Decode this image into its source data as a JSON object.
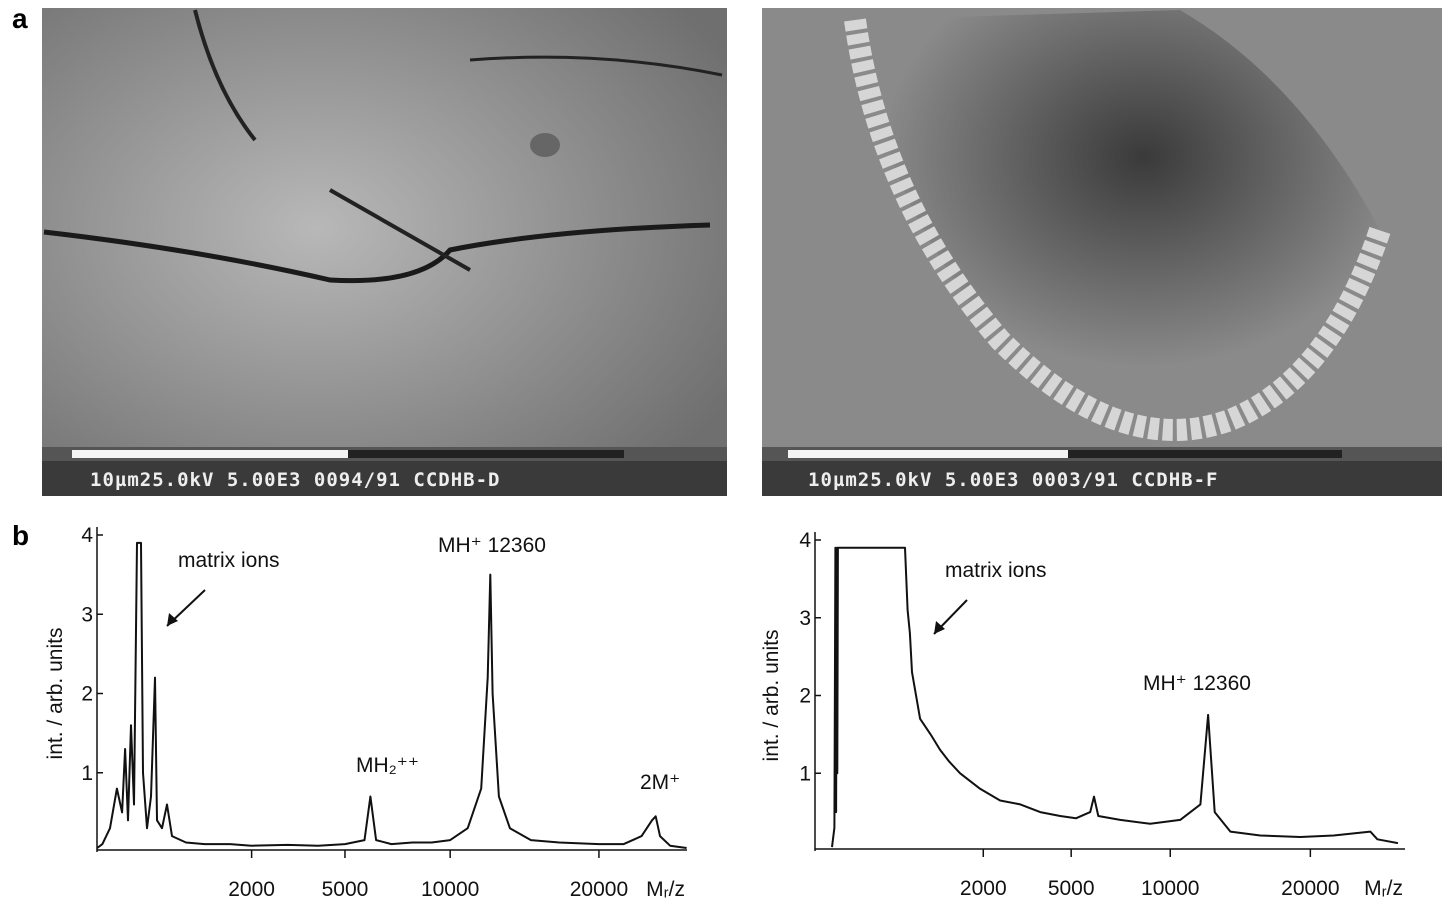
{
  "figure": {
    "panel_labels": [
      "a",
      "b"
    ],
    "images": [
      {
        "caption": "10µm25.0kV 5.00E3 0094/91 CCDHB-D"
      },
      {
        "caption": "10µm25.0kV 5.00E3 0003/91 CCDHB-F"
      }
    ]
  },
  "chart_data": [
    {
      "type": "line",
      "y_label": "int. / arb. units",
      "x_label": "Mᵣ/z",
      "xscale": "sqrt",
      "color": "#111111",
      "xlim": [
        0,
        28000
      ],
      "ylim": [
        0,
        4
      ],
      "xticks": [
        2000,
        5000,
        10000,
        20000
      ],
      "yticks": [
        1,
        2,
        3,
        4
      ],
      "annotations": [
        "matrix ions",
        "MH⁺  12360",
        "MH₂⁺⁺",
        "2M⁺"
      ],
      "x": [
        3,
        10,
        28,
        52,
        75,
        90,
        106,
        124,
        143,
        164,
        180,
        194,
        210,
        243,
        279,
        318,
        338,
        391,
        448,
        509,
        700,
        1000,
        1500,
        2000,
        3000,
        4000,
        5000,
        5800,
        6050,
        6300,
        7000,
        8000,
        9000,
        10000,
        11000,
        11800,
        12200,
        12360,
        12500,
        12900,
        13600,
        15000,
        17000,
        20000,
        22000,
        23500,
        24400,
        24720,
        25100,
        26000,
        27500
      ],
      "values": [
        0.05,
        0.1,
        0.3,
        0.8,
        0.5,
        1.3,
        0.4,
        1.6,
        0.6,
        3.9,
        3.9,
        3.9,
        1.0,
        0.3,
        0.7,
        2.2,
        0.4,
        0.3,
        0.6,
        0.2,
        0.12,
        0.1,
        0.1,
        0.08,
        0.09,
        0.08,
        0.1,
        0.15,
        0.7,
        0.15,
        0.1,
        0.12,
        0.12,
        0.15,
        0.3,
        0.8,
        2.2,
        3.5,
        2.0,
        0.7,
        0.3,
        0.15,
        0.12,
        0.1,
        0.1,
        0.2,
        0.4,
        0.45,
        0.2,
        0.08,
        0.05
      ]
    },
    {
      "type": "line",
      "y_label": "int. / arb. units",
      "x_label": "Mᵣ/z",
      "xscale": "sqrt",
      "color": "#111111",
      "xlim": [
        0,
        28000
      ],
      "ylim": [
        0,
        4
      ],
      "xticks": [
        2000,
        5000,
        10000,
        20000
      ],
      "yticks": [
        1,
        2,
        3,
        4
      ],
      "annotations": [
        "matrix ions",
        "MH⁺  12360"
      ],
      "x": [
        0,
        0.5,
        1,
        1.5,
        2,
        2.5,
        3,
        100,
        300,
        466,
        500,
        530,
        560,
        678,
        850,
        1021,
        1200,
        1434,
        1917,
        2470,
        3100,
        3787,
        4550,
        5200,
        5826,
        6000,
        6200,
        7260,
        8850,
        10600,
        11860,
        12360,
        12800,
        13870,
        16030,
        19170,
        22000,
        25330,
        26000,
        28000
      ],
      "values": [
        0.05,
        0.3,
        3.9,
        0.5,
        3.9,
        1.0,
        3.9,
        3.9,
        3.9,
        3.9,
        3.1,
        2.8,
        2.3,
        1.7,
        1.5,
        1.3,
        1.15,
        1.0,
        0.8,
        0.65,
        0.6,
        0.5,
        0.45,
        0.42,
        0.5,
        0.7,
        0.45,
        0.4,
        0.35,
        0.4,
        0.6,
        1.75,
        0.5,
        0.25,
        0.2,
        0.18,
        0.2,
        0.25,
        0.15,
        0.1
      ]
    }
  ]
}
